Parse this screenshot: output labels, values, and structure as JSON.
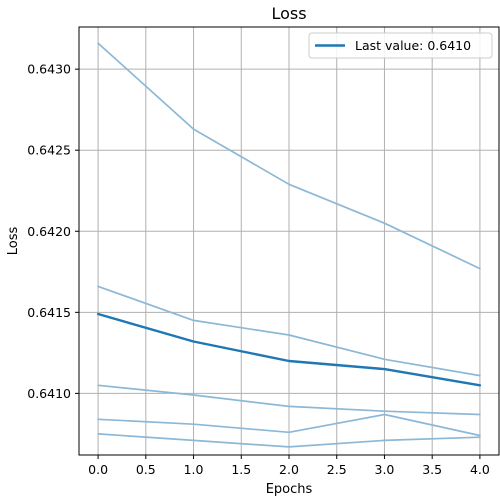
{
  "chart_data": {
    "type": "line",
    "title": "Loss",
    "xlabel": "Epochs",
    "ylabel": "Loss",
    "xlim": [
      -0.2,
      4.2
    ],
    "ylim": [
      0.64062,
      0.64326
    ],
    "x_ticks": [
      0.0,
      0.5,
      1.0,
      1.5,
      2.0,
      2.5,
      3.0,
      3.5,
      4.0
    ],
    "x_tick_labels": [
      "0.0",
      "0.5",
      "1.0",
      "1.5",
      "2.0",
      "2.5",
      "3.0",
      "3.5",
      "4.0"
    ],
    "y_ticks": [
      0.641,
      0.6415,
      0.642,
      0.6425,
      0.643
    ],
    "y_tick_labels": [
      "0.6410",
      "0.6415",
      "0.6420",
      "0.6425",
      "0.6430"
    ],
    "grid": true,
    "legend_position": "top-right",
    "x": [
      0,
      1,
      2,
      3,
      4
    ],
    "series": [
      {
        "values": [
          0.64316,
          0.64263,
          0.64229,
          0.64205,
          0.64177
        ],
        "color": "#8cb8d7",
        "highlight": false
      },
      {
        "values": [
          0.64166,
          0.64145,
          0.64136,
          0.64121,
          0.64111
        ],
        "color": "#8cb8d7",
        "highlight": false
      },
      {
        "values": [
          0.64105,
          0.64099,
          0.64092,
          0.64089,
          0.64087
        ],
        "color": "#8cb8d7",
        "highlight": false
      },
      {
        "values": [
          0.64084,
          0.64081,
          0.64076,
          0.64087,
          0.64074
        ],
        "color": "#8cb8d7",
        "highlight": false
      },
      {
        "values": [
          0.64075,
          0.64071,
          0.64067,
          0.64071,
          0.64073
        ],
        "color": "#8cb8d7",
        "highlight": false
      },
      {
        "name": "Last value: 0.6410",
        "values": [
          0.64149,
          0.64132,
          0.6412,
          0.64115,
          0.64105
        ],
        "color": "#1f77b4",
        "highlight": true
      }
    ]
  }
}
